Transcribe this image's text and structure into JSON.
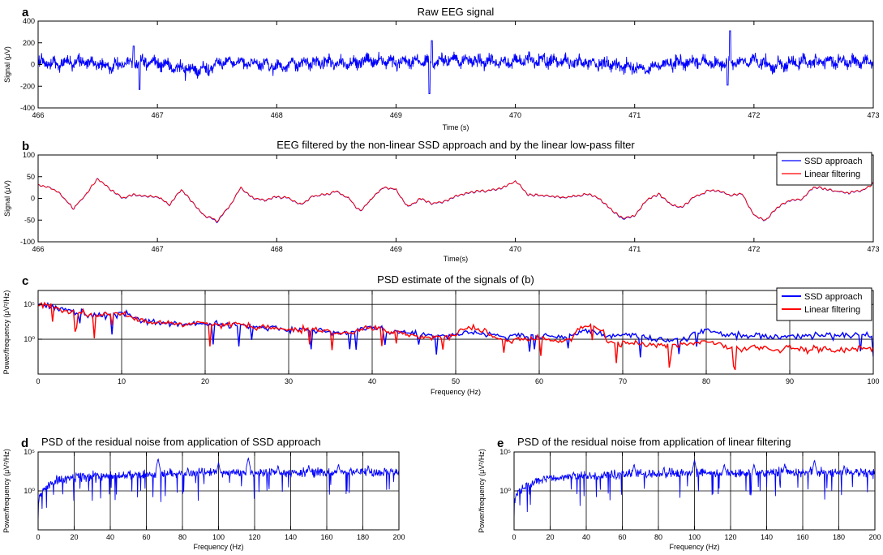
{
  "chart_data": [
    {
      "panel_label": "a",
      "type": "line",
      "title": "Raw EEG signal",
      "xlabel": "Time (s)",
      "ylabel": "Signal (μV)",
      "xlim": [
        466,
        473
      ],
      "ylim": [
        -400,
        400
      ],
      "x_ticks": [
        "466",
        "467",
        "468",
        "469",
        "470",
        "471",
        "472",
        "473"
      ],
      "y_ticks": [
        "400",
        "200",
        "0",
        "-200",
        "-400"
      ],
      "grid": false,
      "series": [
        {
          "color": "#0000ff",
          "x": [
            466.0,
            466.2,
            466.4,
            466.6,
            466.75,
            466.8,
            466.85,
            467.0,
            467.2,
            467.4,
            467.6,
            467.8,
            468.0,
            468.2,
            468.4,
            468.6,
            468.8,
            469.0,
            469.25,
            469.28,
            469.3,
            469.35,
            469.5,
            469.7,
            469.9,
            470.1,
            470.3,
            470.5,
            470.7,
            470.9,
            471.1,
            471.3,
            471.5,
            471.75,
            471.78,
            471.8,
            471.85,
            472.0,
            472.2,
            472.4,
            472.6,
            472.8,
            473.0
          ],
          "y": [
            20,
            10,
            30,
            -20,
            10,
            170,
            -230,
            20,
            -40,
            -50,
            30,
            10,
            -20,
            20,
            30,
            10,
            40,
            20,
            30,
            -270,
            220,
            30,
            40,
            30,
            20,
            40,
            30,
            20,
            10,
            -20,
            -30,
            10,
            20,
            10,
            -190,
            310,
            20,
            30,
            -10,
            20,
            30,
            20,
            30
          ]
        }
      ]
    },
    {
      "panel_label": "b",
      "type": "line",
      "title": "EEG filtered by the non-linear SSD approach and by the linear low-pass filter",
      "xlabel": "Time(s)",
      "ylabel": "Signal (μV)",
      "xlim": [
        466,
        473
      ],
      "ylim": [
        -100,
        100
      ],
      "x_ticks": [
        "466",
        "467",
        "468",
        "469",
        "470",
        "471",
        "472",
        "473"
      ],
      "y_ticks": [
        "100",
        "50",
        "0",
        "-50",
        "-100"
      ],
      "grid": false,
      "legend_position": "top-right",
      "x": [
        466.0,
        466.1,
        466.2,
        466.3,
        466.4,
        466.5,
        466.6,
        466.7,
        466.8,
        466.9,
        467.0,
        467.1,
        467.2,
        467.3,
        467.4,
        467.5,
        467.6,
        467.7,
        467.8,
        467.9,
        468.0,
        468.1,
        468.2,
        468.3,
        468.4,
        468.5,
        468.6,
        468.7,
        468.8,
        468.9,
        469.0,
        469.1,
        469.2,
        469.3,
        469.4,
        469.5,
        469.6,
        469.7,
        469.8,
        469.9,
        470.0,
        470.1,
        470.2,
        470.3,
        470.4,
        470.5,
        470.6,
        470.7,
        470.8,
        470.9,
        471.0,
        471.1,
        471.2,
        471.3,
        471.4,
        471.5,
        471.6,
        471.7,
        471.8,
        471.9,
        472.0,
        472.1,
        472.2,
        472.3,
        472.4,
        472.5,
        472.6,
        472.7,
        472.8,
        472.9,
        473.0
      ],
      "series": [
        {
          "name": "SSD approach",
          "color": "#0000ff",
          "y": [
            30,
            25,
            5,
            -25,
            10,
            45,
            20,
            0,
            10,
            5,
            5,
            -15,
            20,
            -10,
            -40,
            -55,
            -20,
            25,
            0,
            -5,
            5,
            0,
            -15,
            5,
            10,
            15,
            0,
            -30,
            0,
            25,
            20,
            -20,
            0,
            -15,
            -10,
            5,
            10,
            15,
            20,
            25,
            40,
            10,
            10,
            5,
            0,
            5,
            10,
            0,
            -25,
            -45,
            -40,
            -5,
            10,
            -15,
            -20,
            5,
            15,
            15,
            5,
            10,
            -40,
            -50,
            -20,
            -5,
            0,
            25,
            20,
            15,
            10,
            15,
            35
          ]
        },
        {
          "name": "Linear filtering",
          "color": "#ff0000",
          "y": [
            30,
            24,
            5,
            -25,
            10,
            44,
            20,
            0,
            10,
            5,
            5,
            -15,
            20,
            -10,
            -40,
            -54,
            -20,
            25,
            0,
            -5,
            5,
            0,
            -15,
            5,
            10,
            15,
            0,
            -30,
            0,
            25,
            20,
            -20,
            0,
            -15,
            -10,
            5,
            10,
            15,
            20,
            25,
            39,
            10,
            10,
            5,
            0,
            5,
            10,
            0,
            -25,
            -44,
            -40,
            -5,
            10,
            -15,
            -20,
            5,
            15,
            15,
            5,
            10,
            -40,
            -50,
            -20,
            -5,
            0,
            25,
            20,
            15,
            10,
            15,
            34
          ]
        }
      ]
    },
    {
      "panel_label": "c",
      "type": "line",
      "title": "PSD estimate of the signals of (b)",
      "xlabel": "Frequency (Hz)",
      "ylabel": "Power/frequency (μV²/Hz)",
      "xlim": [
        0,
        100
      ],
      "y_scale": "log",
      "ylim": [
        1e-05,
        10000000.0
      ],
      "x_ticks": [
        "0",
        "10",
        "20",
        "30",
        "40",
        "50",
        "60",
        "70",
        "80",
        "90",
        "100"
      ],
      "y_ticks": [
        "10⁵",
        "10⁰"
      ],
      "grid": true,
      "legend_position": "top-right",
      "x": [
        0,
        2,
        4,
        6,
        8,
        10,
        12,
        14,
        16,
        18,
        20,
        22,
        24,
        26,
        28,
        30,
        32,
        34,
        36,
        38,
        40,
        42,
        44,
        46,
        48,
        50,
        52,
        54,
        56,
        58,
        60,
        62,
        64,
        66,
        68,
        70,
        72,
        74,
        76,
        78,
        80,
        82,
        84,
        86,
        88,
        90,
        92,
        94,
        96,
        98,
        100
      ],
      "series": [
        {
          "name": "SSD approach",
          "color": "#0000ff",
          "y": [
            100000,
            30000,
            10000,
            3000,
            3000,
            5000,
            500,
            300,
            200,
            100,
            200,
            100,
            150,
            50,
            40,
            20,
            30,
            15,
            8,
            10,
            50,
            10,
            8,
            6,
            3,
            5,
            10,
            4,
            2,
            3,
            2,
            2,
            3,
            20,
            2,
            5,
            2,
            1,
            0.8,
            1,
            20,
            5,
            3,
            3,
            2,
            2,
            3,
            3,
            4,
            4,
            3
          ]
        },
        {
          "name": "Linear filtering",
          "color": "#ff0000",
          "y": [
            100000,
            30000,
            10000,
            3000,
            3000,
            5000,
            500,
            300,
            200,
            100,
            200,
            100,
            150,
            50,
            40,
            20,
            30,
            15,
            8,
            10,
            50,
            10,
            5,
            2,
            2,
            3,
            50,
            3,
            0.5,
            1,
            1,
            0.5,
            1,
            80,
            0.3,
            0.3,
            0.2,
            0.1,
            0.1,
            0.3,
            0.5,
            0.1,
            0.05,
            0.05,
            0.03,
            0.05,
            0.03,
            0.05,
            0.03,
            0.05,
            0.05
          ]
        }
      ]
    },
    {
      "panel_label": "d",
      "type": "line",
      "title": "PSD of the residual noise from application of SSD approach",
      "xlabel": "Frequency (Hz)",
      "ylabel": "Power/frequency (μV²/Hz)",
      "xlim": [
        0,
        200
      ],
      "y_scale": "log",
      "ylim": [
        1e-05,
        100000.0
      ],
      "x_ticks": [
        "0",
        "20",
        "40",
        "60",
        "80",
        "100",
        "120",
        "140",
        "160",
        "180",
        "200"
      ],
      "y_ticks": [
        "10⁵",
        "10⁰"
      ],
      "grid": true,
      "series": [
        {
          "color": "#0000ff",
          "peaks_x": [
            16.5,
            33,
            50,
            66.5,
            83,
            100,
            116.5,
            133,
            150,
            166.5,
            183,
            200
          ],
          "peaks_y": [
            100,
            200,
            300,
            15000,
            1000,
            5000,
            20000,
            2000,
            2000,
            3000,
            2000,
            500
          ],
          "x": [
            0,
            2,
            4,
            6,
            8,
            10,
            15,
            20,
            30,
            40,
            50,
            60,
            70,
            80,
            90,
            100,
            110,
            120,
            130,
            140,
            150,
            160,
            170,
            180,
            190,
            200
          ],
          "y": [
            0.0001,
            0.5,
            2,
            5,
            10,
            20,
            40,
            60,
            80,
            80,
            100,
            120,
            150,
            150,
            200,
            200,
            200,
            200,
            250,
            200,
            250,
            250,
            250,
            250,
            250,
            300
          ]
        }
      ]
    },
    {
      "panel_label": "e",
      "type": "line",
      "title": "PSD of the residual noise from application of linear filtering",
      "xlabel": "Frequency (Hz)",
      "ylabel": "Power/frequency (μV²/Hz)",
      "xlim": [
        0,
        200
      ],
      "y_scale": "log",
      "ylim": [
        1e-05,
        100000.0
      ],
      "x_ticks": [
        "0",
        "20",
        "40",
        "60",
        "80",
        "100",
        "120",
        "140",
        "160",
        "180",
        "200"
      ],
      "y_ticks": [
        "10⁵",
        "10⁰"
      ],
      "grid": true,
      "series": [
        {
          "color": "#0000ff",
          "peaks_x": [
            16.5,
            33,
            50,
            66.5,
            83,
            100,
            116.5,
            133,
            150,
            166.5,
            183,
            200
          ],
          "peaks_y": [
            100,
            300,
            300,
            3000,
            1000,
            10000,
            3000,
            3000,
            3000,
            10000,
            2000,
            500
          ],
          "x": [
            0,
            2,
            4,
            6,
            8,
            10,
            15,
            20,
            30,
            40,
            50,
            60,
            70,
            80,
            90,
            100,
            110,
            120,
            130,
            140,
            150,
            160,
            170,
            180,
            190,
            200
          ],
          "y": [
            0.0005,
            0.5,
            1,
            3,
            5,
            10,
            20,
            40,
            60,
            80,
            100,
            120,
            150,
            150,
            200,
            200,
            200,
            200,
            200,
            200,
            250,
            250,
            250,
            250,
            250,
            300
          ]
        }
      ]
    }
  ]
}
